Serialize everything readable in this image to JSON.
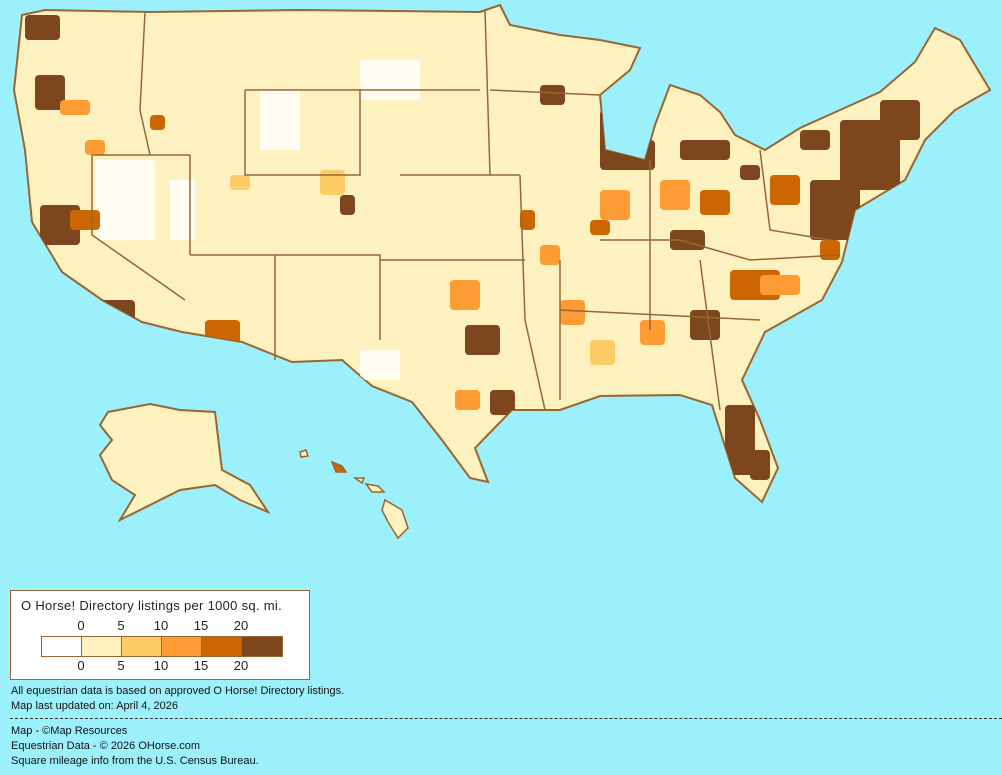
{
  "legend": {
    "title": "O Horse! Directory listings per 1000 sq. mi.",
    "top_labels": [
      "0",
      "5",
      "10",
      "15",
      "20"
    ],
    "bottom_labels": [
      "0",
      "5",
      "10",
      "15",
      "20"
    ],
    "bins": [
      {
        "range": "0",
        "color": "#ffffff"
      },
      {
        "range": "0-5",
        "color": "#fdf2bf"
      },
      {
        "range": "5-10",
        "color": "#fdcc66"
      },
      {
        "range": "10-15",
        "color": "#fd9b35"
      },
      {
        "range": "15-20",
        "color": "#cc6602"
      },
      {
        "range": "20+",
        "color": "#7d461d"
      }
    ]
  },
  "notes": {
    "line1": "All equestrian data is based on approved O Horse! Directory listings.",
    "line2": "Map last updated on: April 4, 2026"
  },
  "credits": {
    "line1": "Map - ©Map Resources",
    "line2": "Equestrian Data - © 2026 OHorse.com",
    "line3": "Square mileage info from the U.S. Census Bureau."
  },
  "colors": {
    "background": "#9cf0fc",
    "border": "#996633"
  }
}
